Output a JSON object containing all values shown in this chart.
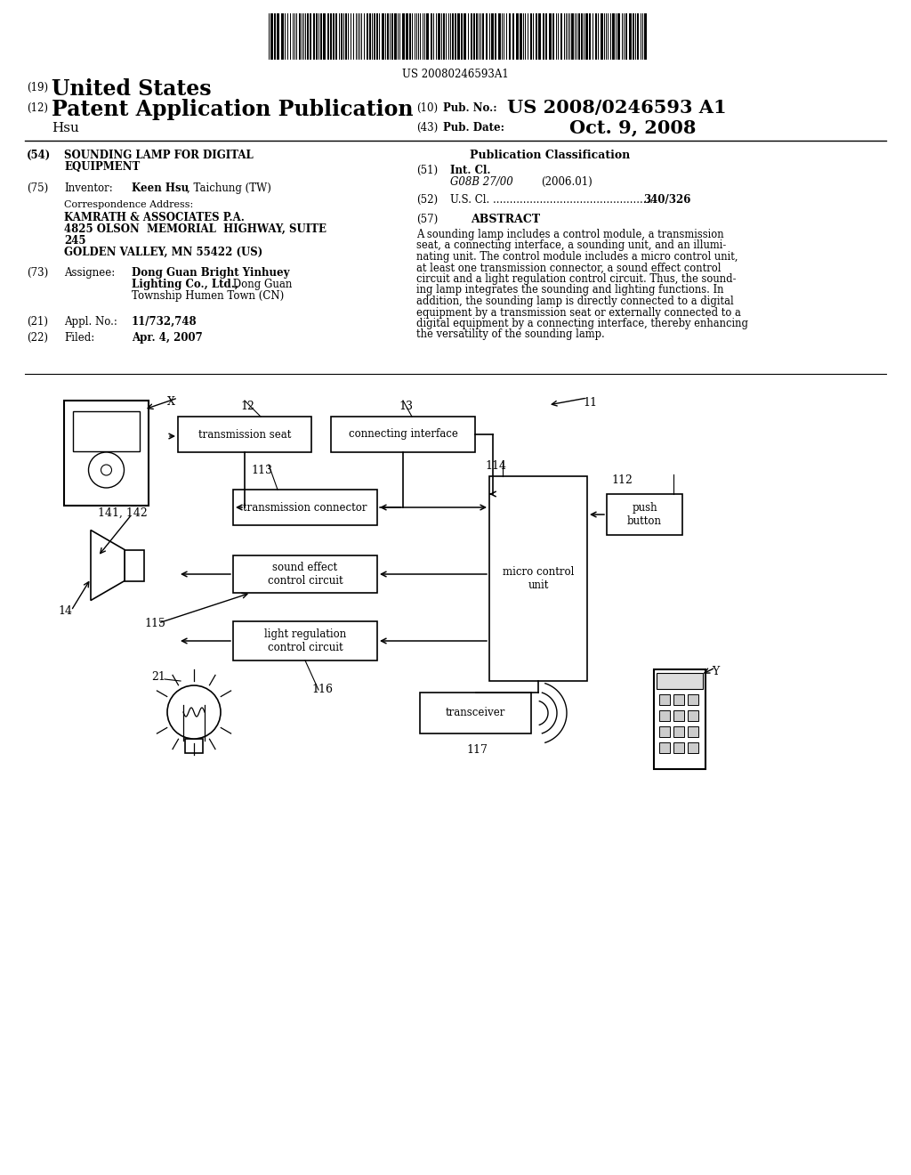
{
  "bg_color": "#ffffff",
  "barcode_text": "US 20080246593A1",
  "abstract_lines": [
    "A sounding lamp includes a control module, a transmission",
    "seat, a connecting interface, a sounding unit, and an illumi-",
    "nating unit. The control module includes a micro control unit,",
    "at least one transmission connector, a sound effect control",
    "circuit and a light regulation control circuit. Thus, the sound-",
    "ing lamp integrates the sounding and lighting functions. In",
    "addition, the sounding lamp is directly connected to a digital",
    "equipment by a transmission seat or externally connected to a",
    "digital equipment by a connecting interface, thereby enhancing",
    "the versatility of the sounding lamp."
  ]
}
